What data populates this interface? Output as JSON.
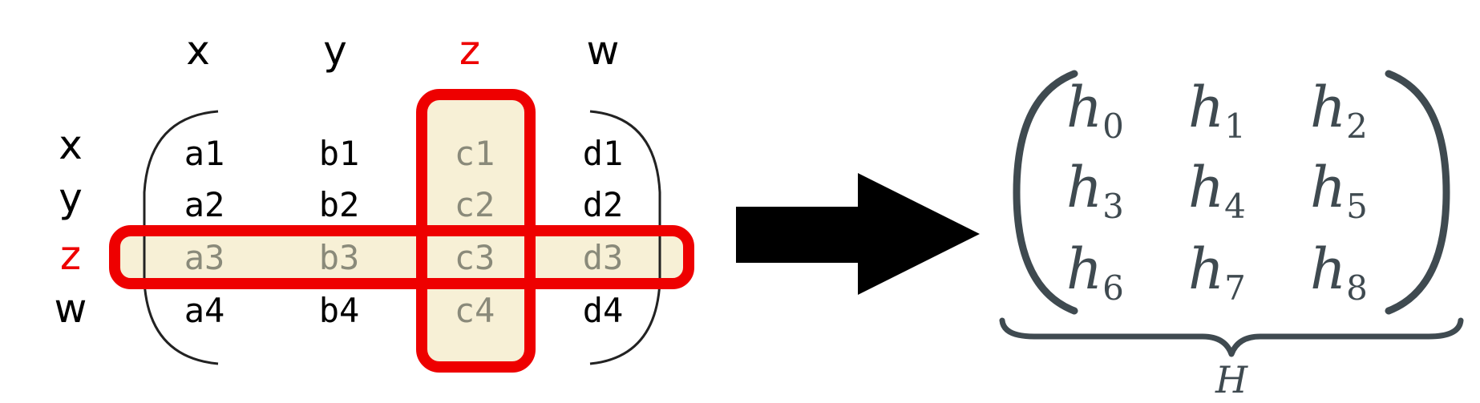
{
  "matrix_left": {
    "col_headers": [
      "x",
      "y",
      "z",
      "w"
    ],
    "row_headers": [
      "x",
      "y",
      "z",
      "w"
    ],
    "highlighted_row": 2,
    "highlighted_col": 2,
    "cells": [
      [
        "a1",
        "b1",
        "c1",
        "d1"
      ],
      [
        "a2",
        "b2",
        "c2",
        "d2"
      ],
      [
        "a3",
        "b3",
        "c3",
        "d3"
      ],
      [
        "a4",
        "b4",
        "c4",
        "d4"
      ]
    ]
  },
  "matrix_right": {
    "cells": [
      [
        "0",
        "1",
        "2"
      ],
      [
        "3",
        "4",
        "5"
      ],
      [
        "6",
        "7",
        "8"
      ]
    ],
    "symbol": "h",
    "brace_label": "H"
  },
  "colors": {
    "highlight_red": "#ee0000",
    "highlight_fill": "#f7f0d6",
    "arrow": "#000000",
    "math_ink": "#3f4a50",
    "dim_text": "#8a8a7a"
  }
}
